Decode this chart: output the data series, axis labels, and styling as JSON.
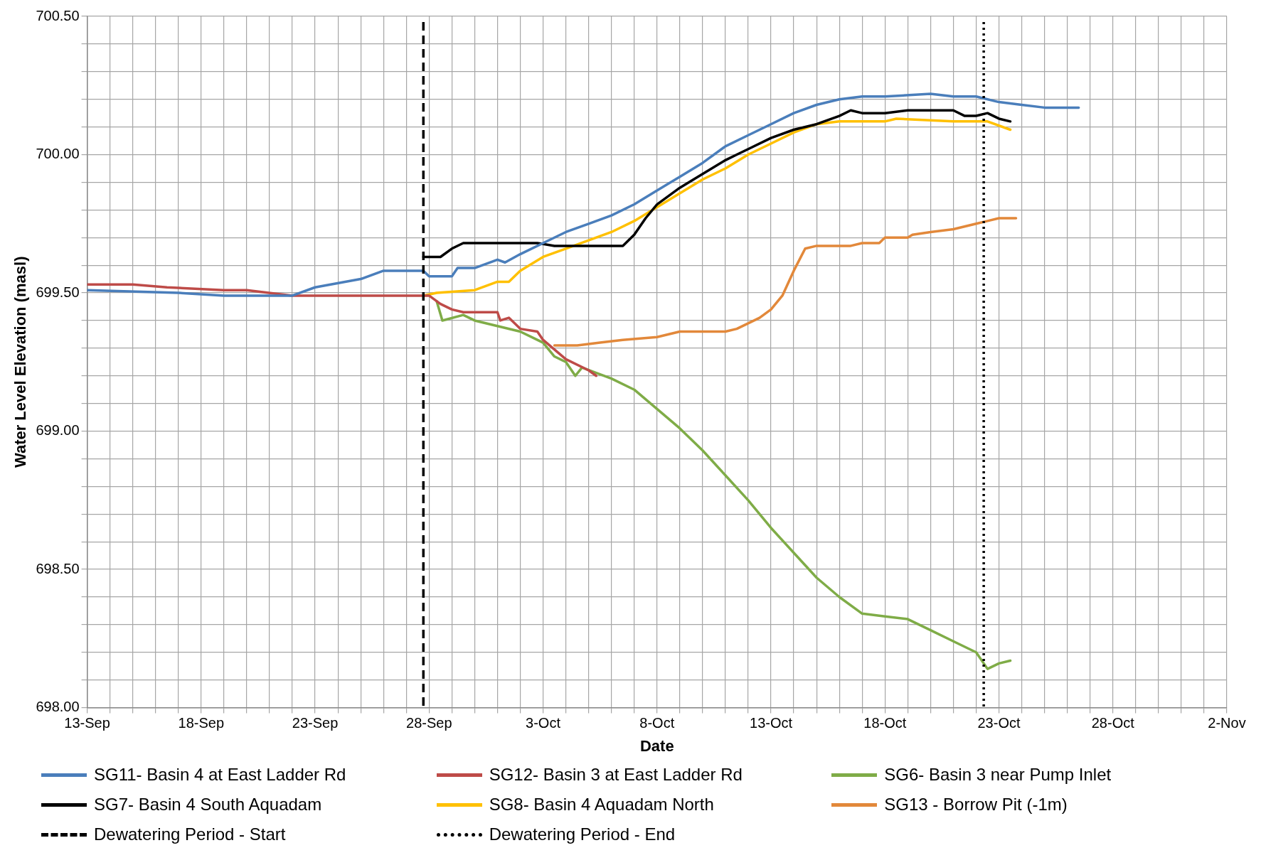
{
  "chart_data": {
    "type": "line",
    "xlabel": "Date",
    "ylabel": "Water Level Elevation (masl)",
    "xlim": [
      "--09-13",
      "--11-02"
    ],
    "ylim": [
      698.0,
      700.5
    ],
    "xticks": [
      {
        "value": "--09-13",
        "label": "13-Sep"
      },
      {
        "value": "--09-14",
        "label": null
      },
      {
        "value": "--09-15",
        "label": null
      },
      {
        "value": "--09-16",
        "label": null
      },
      {
        "value": "--09-17",
        "label": null
      },
      {
        "value": "--09-18",
        "label": "18-Sep"
      },
      {
        "value": "--09-19",
        "label": null
      },
      {
        "value": "--09-20",
        "label": null
      },
      {
        "value": "--09-21",
        "label": null
      },
      {
        "value": "--09-22",
        "label": null
      },
      {
        "value": "--09-23",
        "label": "23-Sep"
      },
      {
        "value": "--09-24",
        "label": null
      },
      {
        "value": "--09-25",
        "label": null
      },
      {
        "value": "--09-26",
        "label": null
      },
      {
        "value": "--09-27",
        "label": null
      },
      {
        "value": "--09-28",
        "label": "28-Sep"
      },
      {
        "value": "--09-29",
        "label": null
      },
      {
        "value": "--09-30",
        "label": null
      },
      {
        "value": "--10-01",
        "label": null
      },
      {
        "value": "--10-02",
        "label": null
      },
      {
        "value": "--10-03",
        "label": "3-Oct"
      },
      {
        "value": "--10-04",
        "label": null
      },
      {
        "value": "--10-05",
        "label": null
      },
      {
        "value": "--10-06",
        "label": null
      },
      {
        "value": "--10-07",
        "label": null
      },
      {
        "value": "--10-08",
        "label": "8-Oct"
      },
      {
        "value": "--10-09",
        "label": null
      },
      {
        "value": "--10-10",
        "label": null
      },
      {
        "value": "--10-11",
        "label": null
      },
      {
        "value": "--10-12",
        "label": null
      },
      {
        "value": "--10-13",
        "label": "13-Oct"
      },
      {
        "value": "--10-14",
        "label": null
      },
      {
        "value": "--10-15",
        "label": null
      },
      {
        "value": "--10-16",
        "label": null
      },
      {
        "value": "--10-17",
        "label": null
      },
      {
        "value": "--10-18",
        "label": "18-Oct"
      },
      {
        "value": "--10-19",
        "label": null
      },
      {
        "value": "--10-20",
        "label": null
      },
      {
        "value": "--10-21",
        "label": null
      },
      {
        "value": "--10-22",
        "label": null
      },
      {
        "value": "--10-23",
        "label": "23-Oct"
      },
      {
        "value": "--10-24",
        "label": null
      },
      {
        "value": "--10-25",
        "label": null
      },
      {
        "value": "--10-26",
        "label": null
      },
      {
        "value": "--10-27",
        "label": null
      },
      {
        "value": "--10-28",
        "label": "28-Oct"
      },
      {
        "value": "--10-29",
        "label": null
      },
      {
        "value": "--10-30",
        "label": null
      },
      {
        "value": "--10-31",
        "label": null
      },
      {
        "value": "--11-01",
        "label": null
      },
      {
        "value": "--11-02",
        "label": "2-Nov"
      }
    ],
    "yticks": [
      {
        "value": 698.0,
        "label": "698.00"
      },
      {
        "value": 698.1,
        "label": null
      },
      {
        "value": 698.2,
        "label": null
      },
      {
        "value": 698.3,
        "label": null
      },
      {
        "value": 698.4,
        "label": null
      },
      {
        "value": 698.5,
        "label": "698.50"
      },
      {
        "value": 698.6,
        "label": null
      },
      {
        "value": 698.7,
        "label": null
      },
      {
        "value": 698.8,
        "label": null
      },
      {
        "value": 698.9,
        "label": null
      },
      {
        "value": 699.0,
        "label": "699.00"
      },
      {
        "value": 699.1,
        "label": null
      },
      {
        "value": 699.2,
        "label": null
      },
      {
        "value": 699.3,
        "label": null
      },
      {
        "value": 699.4,
        "label": null
      },
      {
        "value": 699.5,
        "label": "699.50"
      },
      {
        "value": 699.6,
        "label": null
      },
      {
        "value": 699.7,
        "label": null
      },
      {
        "value": 699.8,
        "label": null
      },
      {
        "value": 699.9,
        "label": null
      },
      {
        "value": 700.0,
        "label": "700.00"
      },
      {
        "value": 700.1,
        "label": null
      },
      {
        "value": 700.2,
        "label": null
      },
      {
        "value": 700.3,
        "label": null
      },
      {
        "value": 700.4,
        "label": null
      },
      {
        "value": 700.5,
        "label": "700.50"
      }
    ],
    "grid": true,
    "legend": "bottom",
    "marker": "none",
    "series": [
      {
        "name": "SG11- Basin 4 at East Ladder Rd",
        "color": "#4a7ebb",
        "x": [
          "--09-13",
          "--09-17",
          "--09-19",
          "--09-22",
          "--09-23",
          "--09-25",
          "--09-26",
          "--09-27T18:00",
          "--09-28",
          "--09-29",
          "--09-29T06:00",
          "--09-30",
          "--10-01",
          "--10-01T08:00",
          "--10-02",
          "--10-03",
          "--10-04",
          "--10-05",
          "--10-06",
          "--10-07",
          "--10-08",
          "--10-09",
          "--10-10",
          "--10-11",
          "--10-12",
          "--10-13",
          "--10-14",
          "--10-15",
          "--10-16",
          "--10-17",
          "--10-18",
          "--10-20",
          "--10-21",
          "--10-22",
          "--10-23",
          "--10-24",
          "--10-25",
          "--10-26T12:00"
        ],
        "values": [
          699.51,
          699.5,
          699.49,
          699.49,
          699.52,
          699.55,
          699.58,
          699.58,
          699.56,
          699.56,
          699.59,
          699.59,
          699.62,
          699.61,
          699.64,
          699.68,
          699.72,
          699.75,
          699.78,
          699.82,
          699.87,
          699.92,
          699.97,
          700.03,
          700.07,
          700.11,
          700.15,
          700.18,
          700.2,
          700.21,
          700.21,
          700.22,
          700.21,
          700.21,
          700.19,
          700.18,
          700.17,
          700.17
        ]
      },
      {
        "name": "SG12- Basin 3 at East Ladder Rd",
        "color": "#be4b48",
        "x": [
          "--09-13",
          "--09-15",
          "--09-16T12:00",
          "--09-19",
          "--09-20",
          "--09-22",
          "--09-28",
          "--09-28T12:00",
          "--09-29",
          "--09-29T12:00",
          "--10-01",
          "--10-01T03:00",
          "--10-01T12:00",
          "--10-02",
          "--10-02T18:00",
          "--10-03",
          "--10-04",
          "--10-05",
          "--10-05T08:00"
        ],
        "values": [
          699.53,
          699.53,
          699.52,
          699.51,
          699.51,
          699.49,
          699.49,
          699.46,
          699.44,
          699.43,
          699.43,
          699.4,
          699.41,
          699.37,
          699.36,
          699.33,
          699.26,
          699.22,
          699.2
        ]
      },
      {
        "name": "SG6- Basin 3 near Pump Inlet",
        "color": "#7fac47",
        "x": [
          "--09-28T08:00",
          "--09-28T14:00",
          "--09-29T12:00",
          "--09-30",
          "--10-01",
          "--10-02",
          "--10-03",
          "--10-03T12:00",
          "--10-04",
          "--10-04T10:00",
          "--10-04T17:00",
          "--10-06",
          "--10-07",
          "--10-08",
          "--10-09",
          "--10-10",
          "--10-11",
          "--10-12",
          "--10-13",
          "--10-14",
          "--10-15",
          "--10-16",
          "--10-17",
          "--10-18",
          "--10-19",
          "--10-20",
          "--10-21",
          "--10-22",
          "--10-22T12:00",
          "--10-23",
          "--10-23T12:00"
        ],
        "values": [
          699.47,
          699.4,
          699.42,
          699.4,
          699.38,
          699.36,
          699.32,
          699.27,
          699.25,
          699.2,
          699.23,
          699.19,
          699.15,
          699.08,
          699.01,
          698.93,
          698.84,
          698.75,
          698.65,
          698.56,
          698.47,
          698.4,
          698.34,
          698.33,
          698.32,
          698.28,
          698.24,
          698.2,
          698.14,
          698.16,
          698.17
        ]
      },
      {
        "name": "SG7- Basin 4 South Aquadam",
        "color": "#000000",
        "x": [
          "--09-27T18:00",
          "--09-28T12:00",
          "--09-29",
          "--09-29T12:00",
          "--10-02T18:00",
          "--10-03T12:00",
          "--10-06T12:00",
          "--10-07",
          "--10-07T12:00",
          "--10-08",
          "--10-09",
          "--10-10",
          "--10-11",
          "--10-11T12:00",
          "--10-12",
          "--10-13",
          "--10-14",
          "--10-15",
          "--10-16",
          "--10-16T12:00",
          "--10-17",
          "--10-18",
          "--10-19",
          "--10-21",
          "--10-21T12:00",
          "--10-22",
          "--10-22T12:00",
          "--10-23",
          "--10-23T12:00"
        ],
        "values": [
          699.63,
          699.63,
          699.66,
          699.68,
          699.68,
          699.67,
          699.67,
          699.71,
          699.77,
          699.82,
          699.88,
          699.93,
          699.98,
          700.0,
          700.02,
          700.06,
          700.09,
          700.11,
          700.14,
          700.16,
          700.15,
          700.15,
          700.16,
          700.16,
          700.14,
          700.14,
          700.15,
          700.13,
          700.12
        ]
      },
      {
        "name": "SG8- Basin 4 Aquadam North",
        "color": "#ffc000",
        "x": [
          "--09-27T18:00",
          "--09-28T08:00",
          "--09-30",
          "--10-01",
          "--10-01T12:00",
          "--10-02",
          "--10-03",
          "--10-04",
          "--10-05",
          "--10-06",
          "--10-07",
          "--10-08",
          "--10-09",
          "--10-10",
          "--10-11",
          "--10-12",
          "--10-13",
          "--10-14",
          "--10-15",
          "--10-16",
          "--10-18",
          "--10-18T12:00",
          "--10-21",
          "--10-22T12:00",
          "--10-23T12:00"
        ],
        "values": [
          699.49,
          699.5,
          699.51,
          699.54,
          699.54,
          699.58,
          699.63,
          699.66,
          699.69,
          699.72,
          699.76,
          699.81,
          699.86,
          699.91,
          699.95,
          700.0,
          700.04,
          700.08,
          700.11,
          700.12,
          700.12,
          700.13,
          700.12,
          700.12,
          700.09
        ]
      },
      {
        "name": "SG13 - Borrow Pit (-1m)",
        "color": "#e2883a",
        "x": [
          "--10-03T12:00",
          "--10-04T12:00",
          "--10-05T12:00",
          "--10-06T12:00",
          "--10-08",
          "--10-09",
          "--10-10",
          "--10-11",
          "--10-11T12:00",
          "--10-12T12:00",
          "--10-13",
          "--10-13T12:00",
          "--10-14",
          "--10-14T12:00",
          "--10-15",
          "--10-16T12:00",
          "--10-17",
          "--10-17T18:00",
          "--10-18",
          "--10-19",
          "--10-19T05:00",
          "--10-20",
          "--10-21",
          "--10-22",
          "--10-22T12:00",
          "--10-23",
          "--10-23T18:00"
        ],
        "values": [
          699.31,
          699.31,
          699.32,
          699.33,
          699.34,
          699.36,
          699.36,
          699.36,
          699.37,
          699.41,
          699.44,
          699.49,
          699.58,
          699.66,
          699.67,
          699.67,
          699.68,
          699.68,
          699.7,
          699.7,
          699.71,
          699.72,
          699.73,
          699.75,
          699.76,
          699.77,
          699.77
        ]
      }
    ],
    "ref_lines": [
      {
        "axis": "x",
        "value": "--09-27T18:00",
        "label": "Dewatering Period - Start",
        "color": "#000000",
        "line_style": "dashed"
      },
      {
        "axis": "x",
        "value": "--10-22T08:00",
        "label": "Dewatering Period - End",
        "color": "#000000",
        "line_style": "dotted"
      }
    ]
  }
}
